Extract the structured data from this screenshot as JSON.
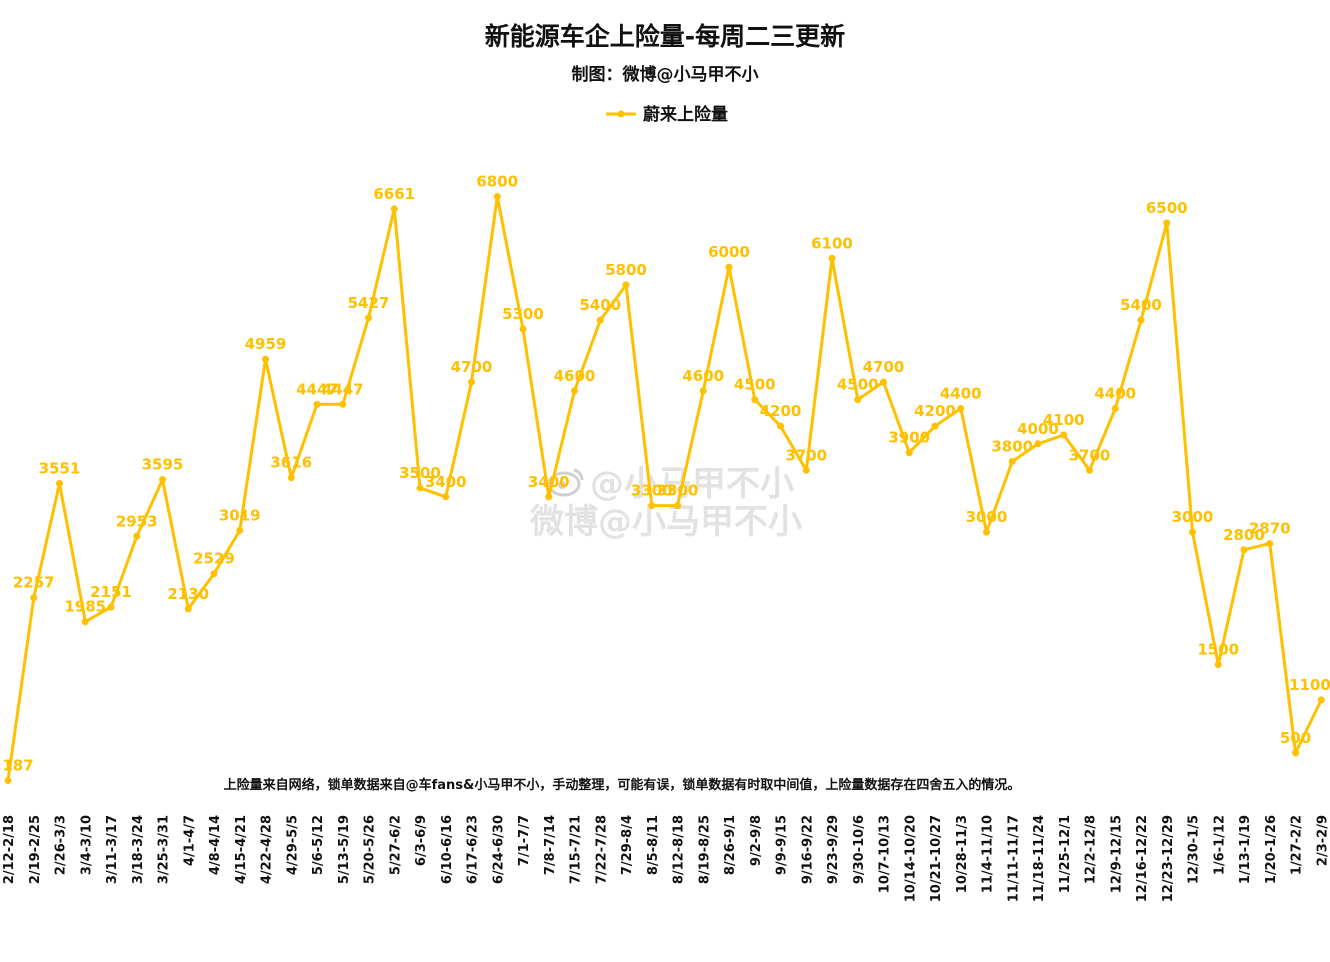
{
  "colors": {
    "series": "#FFC000",
    "text": "#111111",
    "watermark": "#cccccc"
  },
  "header": {
    "title": "新能源车企上险量-每周二三更新",
    "subtitle": "制图：微博@小马甲不小"
  },
  "note": "上险量来自网络，锁单数据来自@车fans&小马甲不小，手动整理，可能有误，锁单数据有时取中间值，上险量数据存在四舍五入的情况。",
  "watermark": {
    "line1": "@小马甲不小",
    "line2": "微博@小马甲不小",
    "icon": "weibo-icon"
  },
  "chart_data": {
    "type": "line",
    "title": "新能源车企上险量-每周二三更新",
    "subtitle": "制图：微博@小马甲不小",
    "legend_position": "top-center",
    "grid": false,
    "ylim": [
      0,
      7000
    ],
    "categories": [
      "2/12-2/18",
      "2/19-2/25",
      "2/26-3/3",
      "3/4-3/10",
      "3/11-3/17",
      "3/18-3/24",
      "3/25-3/31",
      "4/1-4/7",
      "4/8-4/14",
      "4/15-4/21",
      "4/22-4/28",
      "4/29-5/5",
      "5/6-5/12",
      "5/13-5/19",
      "5/20-5/26",
      "5/27-6/2",
      "6/3-6/9",
      "6/10-6/16",
      "6/17-6/23",
      "6/24-6/30",
      "7/1-7/7",
      "7/8-7/14",
      "7/15-7/21",
      "7/22-7/28",
      "7/29-8/4",
      "8/5-8/11",
      "8/12-8/18",
      "8/19-8/25",
      "8/26-9/1",
      "9/2-9/8",
      "9/9-9/15",
      "9/16-9/22",
      "9/23-9/29",
      "9/30-10/6",
      "10/7-10/13",
      "10/14-10/20",
      "10/21-10/27",
      "10/28-11/3",
      "11/4-11/10",
      "11/11-11/17",
      "11/18-11/24",
      "11/25-12/1",
      "12/2-12/8",
      "12/9-12/15",
      "12/16-12/22",
      "12/23-12/29",
      "12/30-1/5",
      "1/6-1/12",
      "1/13-1/19",
      "1/20-1/26",
      "1/27-2/2",
      "2/3-2/9"
    ],
    "series": [
      {
        "name": "蔚来上险量",
        "values": [
          187,
          2257,
          3551,
          1985,
          2151,
          2953,
          3595,
          2130,
          2529,
          3019,
          4959,
          3616,
          4447,
          4447,
          5427,
          6661,
          3500,
          3400,
          4700,
          6800,
          5300,
          3400,
          4600,
          5400,
          5800,
          3300,
          3300,
          4600,
          6000,
          4500,
          4200,
          3700,
          6100,
          4500,
          4700,
          3900,
          4200,
          4400,
          3000,
          3800,
          4000,
          4100,
          3700,
          4400,
          5400,
          6500,
          3000,
          1500,
          2800,
          2870,
          500,
          1100
        ]
      }
    ]
  }
}
